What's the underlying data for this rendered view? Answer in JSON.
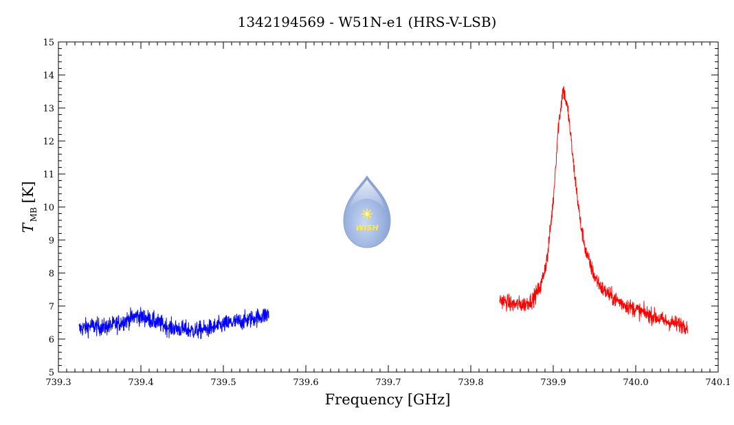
{
  "chart_data": {
    "type": "line",
    "title": "1342194569 - W51N-e1 (HRS-V-LSB)",
    "xlabel": "Frequency [GHz]",
    "ylabel": {
      "symbol": "T",
      "subscript": "MB",
      "unit": "[K]"
    },
    "xlim": [
      739.3,
      740.1
    ],
    "ylim": [
      5,
      15
    ],
    "x_ticks": [
      "739.3",
      "739.4",
      "739.5",
      "739.6",
      "739.7",
      "739.8",
      "739.9",
      "740.0",
      "740.1"
    ],
    "y_ticks": [
      "5",
      "6",
      "7",
      "8",
      "9",
      "10",
      "11",
      "12",
      "13",
      "14",
      "15"
    ],
    "grid": false,
    "series": [
      {
        "color": "#0000ff",
        "x": [
          739.325,
          739.34,
          739.355,
          739.37,
          739.385,
          739.395,
          739.405,
          739.42,
          739.435,
          739.45,
          739.465,
          739.48,
          739.495,
          739.51,
          739.525,
          739.54,
          739.555
        ],
        "y": [
          6.3,
          6.4,
          6.35,
          6.45,
          6.6,
          6.7,
          6.65,
          6.5,
          6.35,
          6.3,
          6.25,
          6.3,
          6.4,
          6.5,
          6.55,
          6.65,
          6.75
        ],
        "noise": 0.22
      },
      {
        "color": "#ff0000",
        "x": [
          739.835,
          739.85,
          739.865,
          739.875,
          739.885,
          739.893,
          739.9,
          739.906,
          739.912,
          739.918,
          739.925,
          739.933,
          739.94,
          739.95,
          739.96,
          739.975,
          739.99,
          740.005,
          740.02,
          740.035,
          740.05,
          740.063
        ],
        "y": [
          7.2,
          7.05,
          7.05,
          7.2,
          7.6,
          8.5,
          10.2,
          12.4,
          13.6,
          12.9,
          11.2,
          9.5,
          8.6,
          7.9,
          7.5,
          7.2,
          7.0,
          6.85,
          6.7,
          6.55,
          6.45,
          6.4
        ],
        "noise": 0.2
      }
    ]
  },
  "logo": {
    "text": "WISH"
  }
}
